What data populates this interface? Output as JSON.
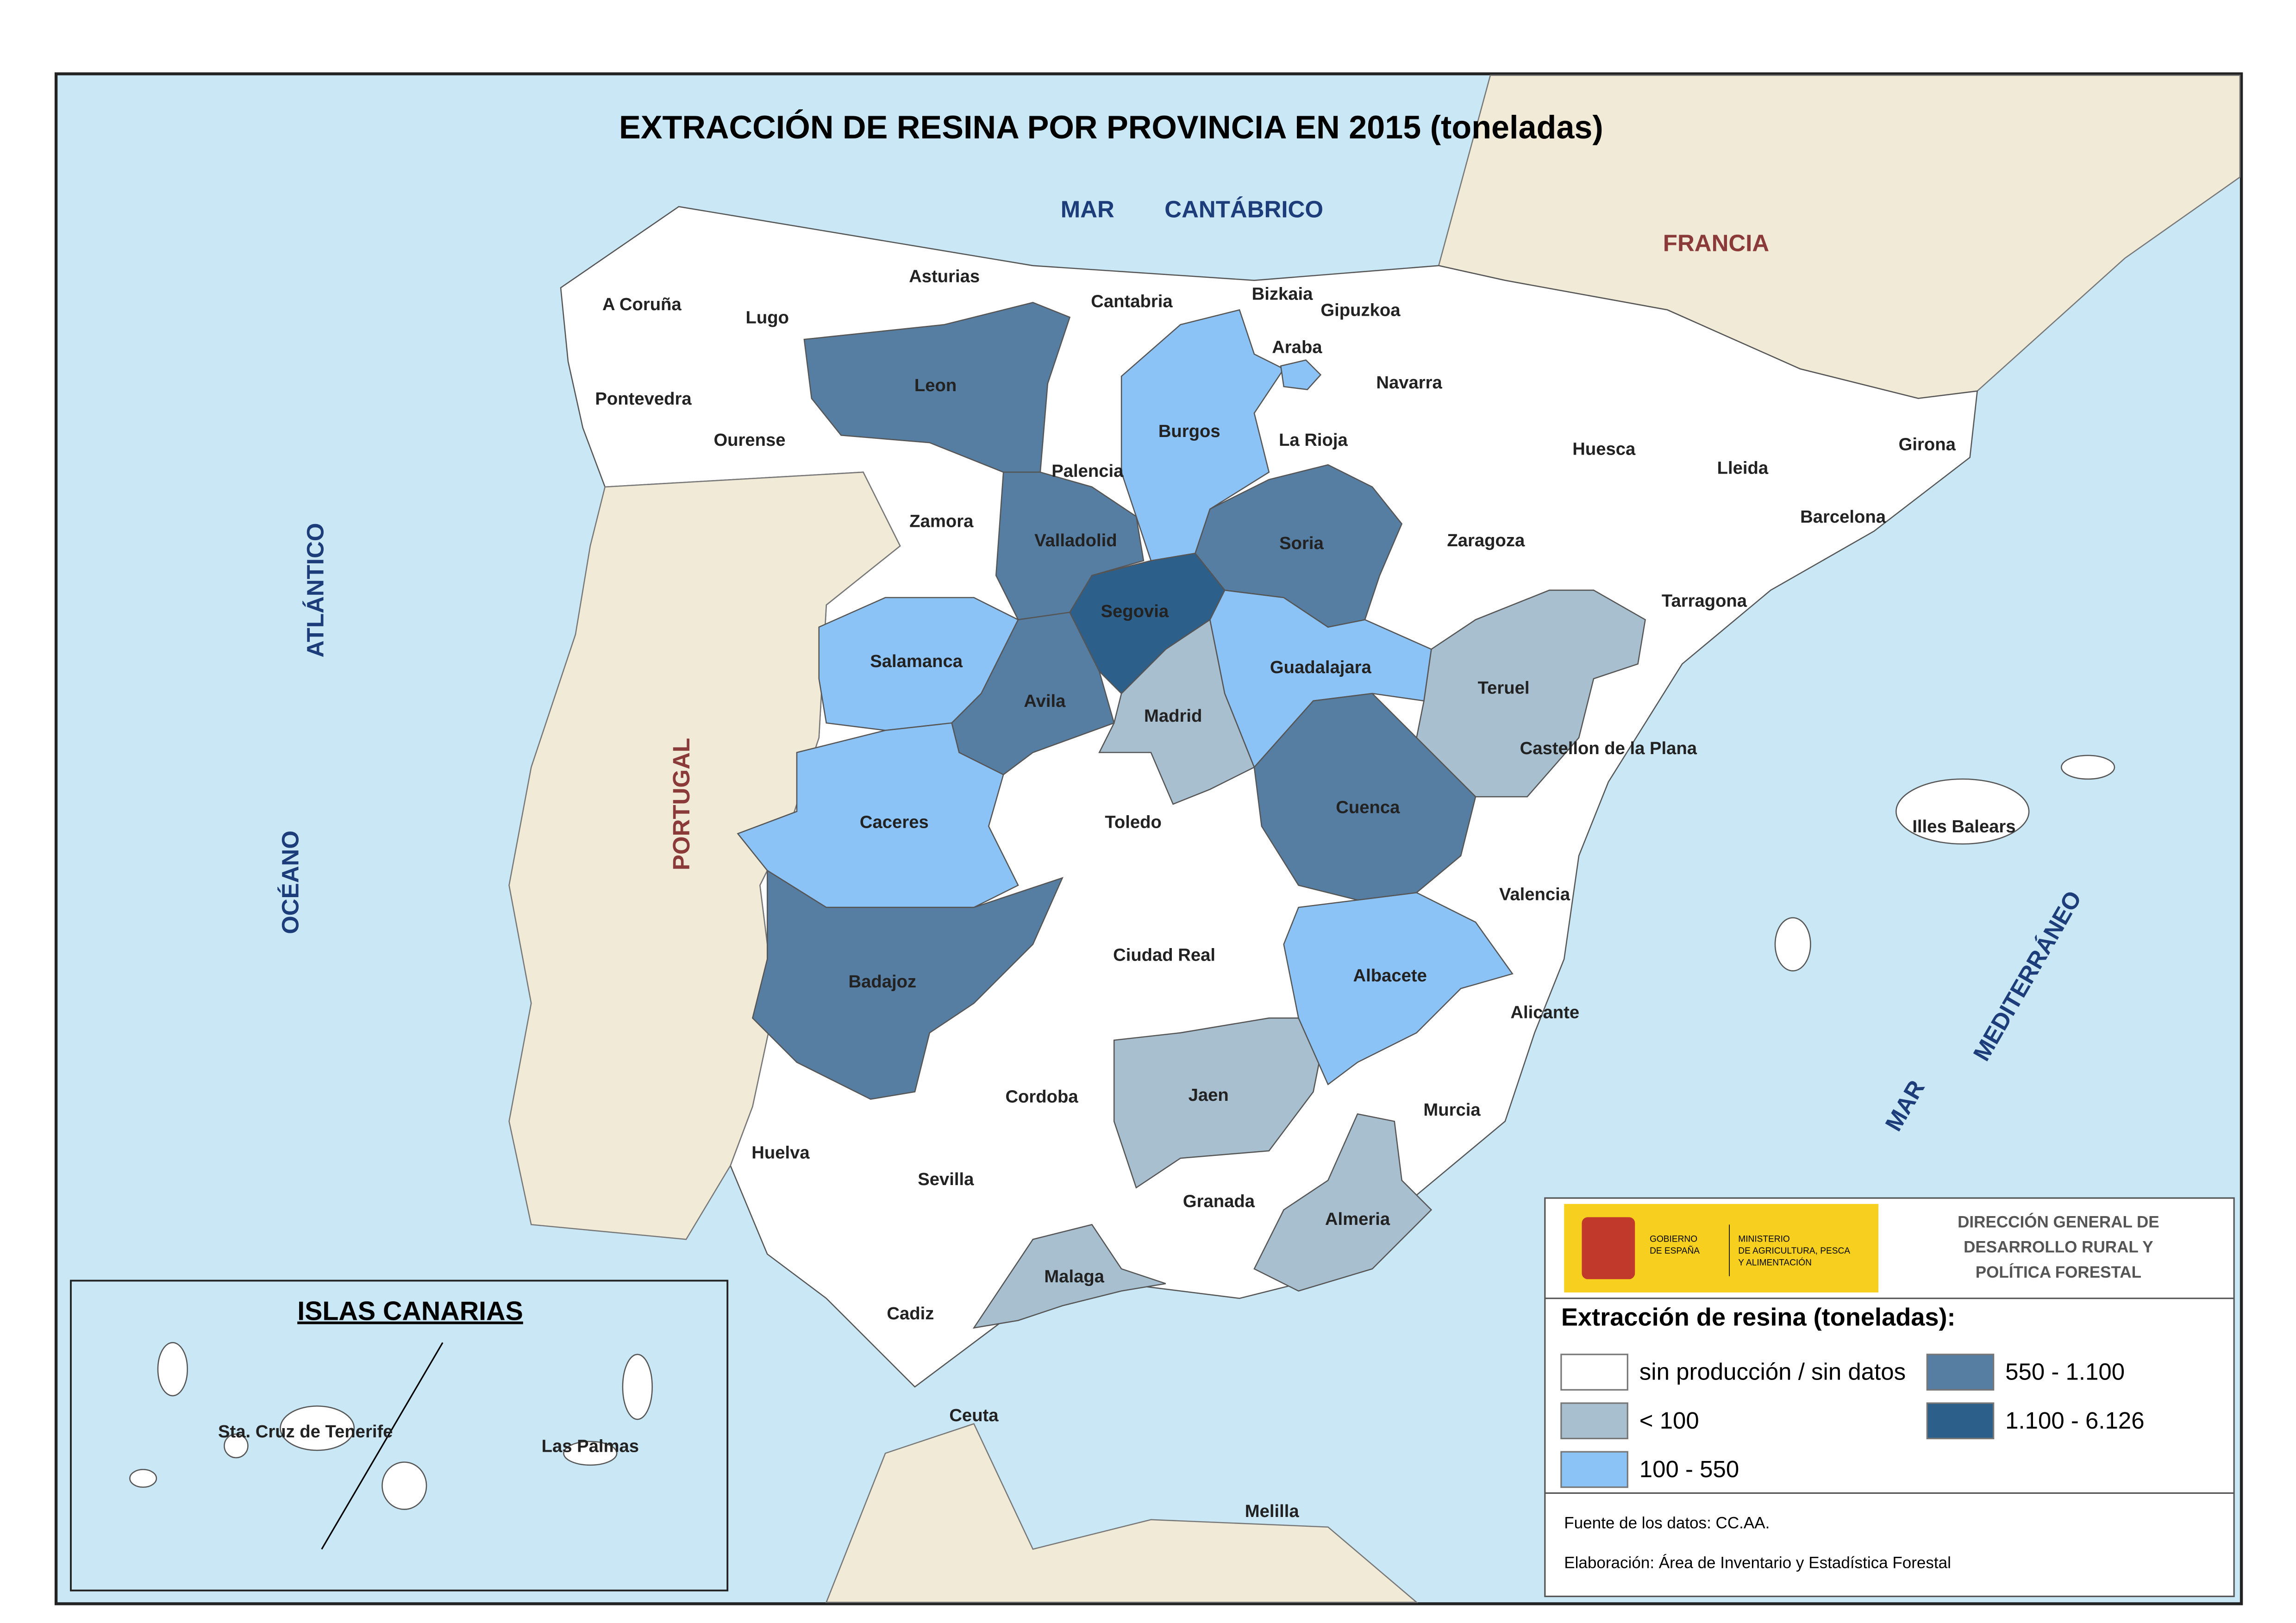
{
  "title": "EXTRACCIÓN DE RESINA POR PROVINCIA EN 2015 (toneladas)",
  "seas": [
    "MAR",
    "CANTÁBRICO",
    "ATLÁNTICO",
    "OCÉANO",
    "MAR",
    "MEDITERRÁNEO"
  ],
  "countries": [
    "FRANCIA",
    "PORTUGAL"
  ],
  "legend": {
    "title": "Extracción de resina (toneladas):",
    "items": [
      {
        "label": "sin producción / sin datos",
        "color": "#ffffff",
        "provinces": [
          "A Coruña",
          "Lugo",
          "Asturias",
          "Cantabria",
          "Bizkaia",
          "Gipuzkoa",
          "Navarra",
          "Pontevedra",
          "Ourense",
          "Palencia",
          "La Rioja",
          "Huesca",
          "Lleida",
          "Girona",
          "Barcelona",
          "Zamora",
          "Zaragoza",
          "Tarragona",
          "Castellon de la Plana",
          "Toledo",
          "Valencia",
          "Illes Balears",
          "Ciudad Real",
          "Alicante",
          "Murcia",
          "Cordoba",
          "Huelva",
          "Sevilla",
          "Granada",
          "Cadiz",
          "Ceuta",
          "Melilla"
        ]
      },
      {
        "label": "< 100",
        "color": "#a7bfcf",
        "provinces": [
          "Madrid",
          "Teruel",
          "Jaen",
          "Almeria",
          "Malaga"
        ]
      },
      {
        "label": "100 - 550",
        "color": "#8cc3f6",
        "provinces": [
          "Burgos",
          "Araba",
          "Salamanca",
          "Guadalajara",
          "Caceres",
          "Albacete"
        ]
      },
      {
        "label": "550 - 1.100",
        "color": "#557ea2",
        "provinces": [
          "Leon",
          "Valladolid",
          "Soria",
          "Avila",
          "Cuenca",
          "Badajoz"
        ]
      },
      {
        "label": "1.100 - 6.126",
        "color": "#2d5f8b",
        "provinces": [
          "Segovia"
        ]
      }
    ]
  },
  "inset": {
    "title": "ISLAS CANARIAS",
    "places": [
      "Sta. Cruz de Tenerife",
      "Las Palmas"
    ]
  },
  "logo": {
    "government": [
      "GOBIERNO",
      "DE ESPAÑA"
    ],
    "ministry": [
      "MINISTERIO",
      "DE AGRICULTURA, PESCA",
      "Y ALIMENTACIÓN"
    ],
    "direction": [
      "DIRECCIÓN GENERAL DE",
      "DESARROLLO RURAL Y",
      "POLÍTICA FORESTAL"
    ]
  },
  "footer": [
    "Fuente de los datos: CC.AA.",
    "Elaboración: Área de Inventario y Estadística Forestal"
  ]
}
